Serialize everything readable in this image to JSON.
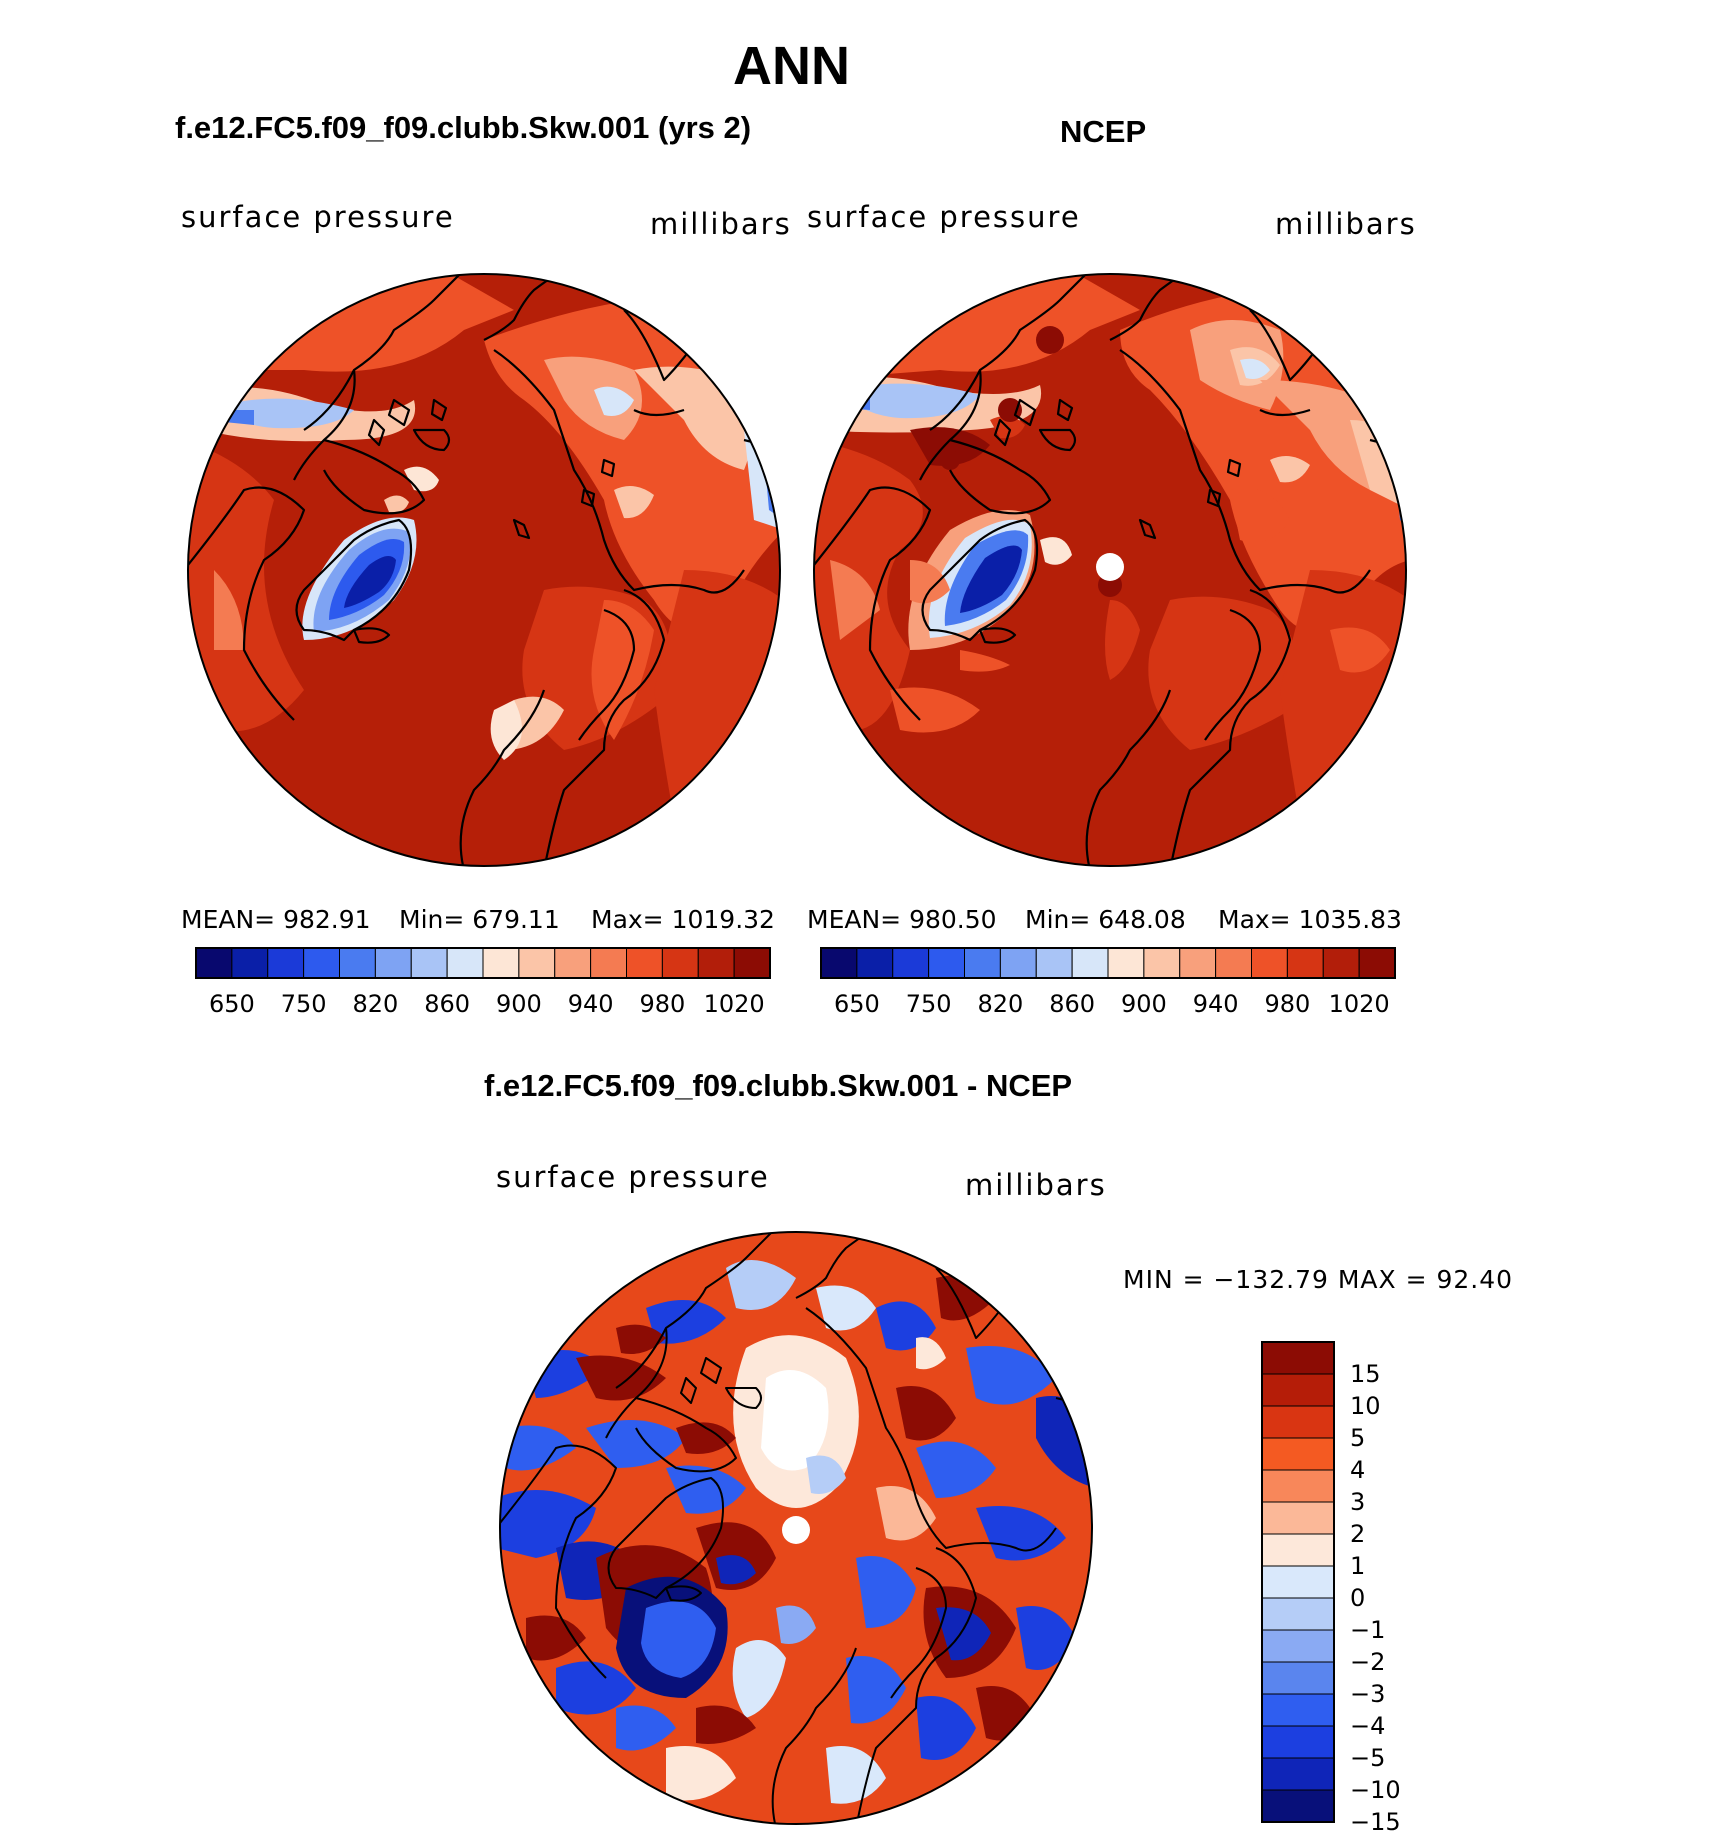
{
  "title": "ANN",
  "panels": [
    {
      "heading": "f.e12.FC5.f09_f09.clubb.Skw.001 (yrs 2)",
      "variable": "surface pressure",
      "units": "millibars",
      "stats": {
        "mean": "MEAN= 982.91",
        "min": "Min= 679.11",
        "max": "Max= 1019.32"
      }
    },
    {
      "heading": "NCEP",
      "variable": "surface pressure",
      "units": "millibars",
      "stats": {
        "mean": "MEAN= 980.50",
        "min": "Min= 648.08",
        "max": "Max= 1035.83"
      }
    }
  ],
  "abs_colorbar": {
    "colors": [
      "#08086e",
      "#0a1fa8",
      "#1b3ad8",
      "#2d5aee",
      "#4a7bf0",
      "#7ea3f3",
      "#a9c4f6",
      "#d7e6f9",
      "#fde6d6",
      "#fbc5a8",
      "#f8a07c",
      "#f47b52",
      "#ee5228",
      "#d63514",
      "#b21e0a",
      "#8c0c04"
    ],
    "labels": [
      "650",
      "750",
      "820",
      "860",
      "900",
      "940",
      "980",
      "1020"
    ]
  },
  "diff": {
    "heading": "f.e12.FC5.f09_f09.clubb.Skw.001 - NCEP",
    "variable": "surface pressure",
    "units": "millibars",
    "minmax": "MIN = −132.79 MAX =   92.40",
    "colorbar": {
      "colors_top_to_bottom": [
        "#8c0c04",
        "#b51d08",
        "#d93512",
        "#f45a22",
        "#f8875a",
        "#fbb898",
        "#fde8da",
        "#d9e8fb",
        "#b5cdf7",
        "#8aaaf3",
        "#5a85ee",
        "#2f5ef0",
        "#1c3fe0",
        "#0f25b8",
        "#08107a"
      ],
      "labels": [
        "15",
        "10",
        "5",
        "4",
        "3",
        "2",
        "1",
        "0",
        "−1",
        "−2",
        "−3",
        "−4",
        "−5",
        "−10",
        "−15"
      ]
    }
  },
  "chart_data": {
    "type": "heatmap",
    "projection": "north polar stereographic",
    "season": "ANN",
    "field": "surface pressure",
    "units": "millibars",
    "maps": [
      {
        "name": "f.e12.FC5.f09_f09.clubb.Skw.001 (yrs 2)",
        "mean": 982.91,
        "min": 679.11,
        "max": 1019.32,
        "contour_levels": [
          650,
          700,
          750,
          800,
          820,
          840,
          860,
          880,
          900,
          920,
          940,
          960,
          980,
          1000,
          1020
        ]
      },
      {
        "name": "NCEP",
        "mean": 980.5,
        "min": 648.08,
        "max": 1035.83,
        "contour_levels": [
          650,
          700,
          750,
          800,
          820,
          840,
          860,
          880,
          900,
          920,
          940,
          960,
          980,
          1000,
          1020
        ]
      },
      {
        "name": "f.e12.FC5.f09_f09.clubb.Skw.001 - NCEP",
        "min": -132.79,
        "max": 92.4,
        "contour_levels": [
          -15,
          -10,
          -5,
          -4,
          -3,
          -2,
          -1,
          0,
          1,
          2,
          3,
          4,
          5,
          10,
          15
        ]
      }
    ]
  }
}
